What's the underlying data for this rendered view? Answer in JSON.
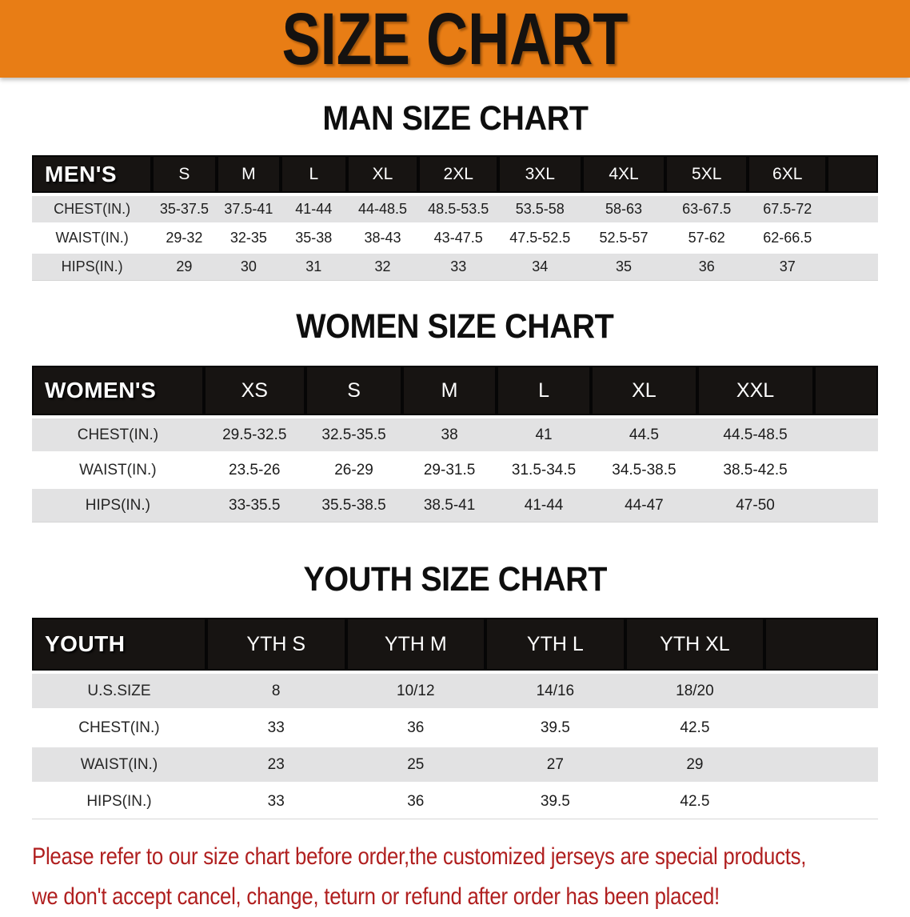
{
  "banner": {
    "title": "SIZE CHART",
    "bg_color": "#e87d15"
  },
  "sections": [
    {
      "heading": "MAN SIZE CHART",
      "group_label": "MEN'S",
      "sizes": [
        "S",
        "M",
        "L",
        "XL",
        "2XL",
        "3XL",
        "4XL",
        "5XL",
        "6XL"
      ],
      "rows": [
        {
          "label": "CHEST(IN.)",
          "values": [
            "35-37.5",
            "37.5-41",
            "41-44",
            "44-48.5",
            "48.5-53.5",
            "53.5-58",
            "58-63",
            "63-67.5",
            "67.5-72"
          ]
        },
        {
          "label": "WAIST(IN.)",
          "values": [
            "29-32",
            "32-35",
            "35-38",
            "38-43",
            "43-47.5",
            "47.5-52.5",
            "52.5-57",
            "57-62",
            "62-66.5"
          ]
        },
        {
          "label": "HIPS(IN.)",
          "values": [
            "29",
            "30",
            "31",
            "32",
            "33",
            "34",
            "35",
            "36",
            "37"
          ]
        }
      ]
    },
    {
      "heading": "WOMEN SIZE CHART",
      "group_label": "WOMEN'S",
      "sizes": [
        "XS",
        "S",
        "M",
        "L",
        "XL",
        "XXL"
      ],
      "rows": [
        {
          "label": "CHEST(IN.)",
          "values": [
            "29.5-32.5",
            "32.5-35.5",
            "38",
            "41",
            "44.5",
            "44.5-48.5"
          ]
        },
        {
          "label": "WAIST(IN.)",
          "values": [
            "23.5-26",
            "26-29",
            "29-31.5",
            "31.5-34.5",
            "34.5-38.5",
            "38.5-42.5"
          ]
        },
        {
          "label": "HIPS(IN.)",
          "values": [
            "33-35.5",
            "35.5-38.5",
            "38.5-41",
            "41-44",
            "44-47",
            "47-50"
          ]
        }
      ]
    },
    {
      "heading": "YOUTH SIZE CHART",
      "group_label": "YOUTH",
      "sizes": [
        "YTH S",
        "YTH M",
        "YTH L",
        "YTH XL"
      ],
      "rows": [
        {
          "label": "U.S.SIZE",
          "values": [
            "8",
            "10/12",
            "14/16",
            "18/20"
          ]
        },
        {
          "label": "CHEST(IN.)",
          "values": [
            "33",
            "36",
            "39.5",
            "42.5"
          ]
        },
        {
          "label": "WAIST(IN.)",
          "values": [
            "23",
            "25",
            "27",
            "29"
          ]
        },
        {
          "label": "HIPS(IN.)",
          "values": [
            "33",
            "36",
            "39.5",
            "42.5"
          ]
        }
      ]
    }
  ],
  "footer": {
    "line1": "Please refer to our size chart before order,the customized jerseys are special products,",
    "line2": "we don't accept cancel, change, teturn or refund after order has been placed!",
    "text_color": "#b01f1f"
  }
}
